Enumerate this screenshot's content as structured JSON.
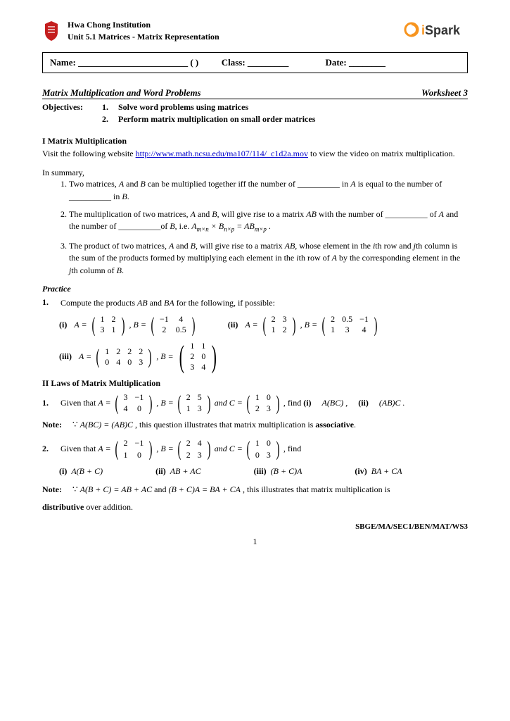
{
  "header": {
    "institution": "Hwa Chong Institution",
    "unit": "Unit 5.1 Matrices - Matrix Representation",
    "logo_right_text": "iSpark",
    "logo_left_color": "#c41e1e",
    "logo_right_color1": "#f7941e",
    "logo_right_color2": "#333333"
  },
  "nameline": {
    "name_label": "Name: ________________________ (      )",
    "class_label": "Class: _________",
    "date_label": "Date: ________"
  },
  "title": {
    "left": "Matrix Multiplication and Word Problems",
    "right": "Worksheet 3"
  },
  "objectives": {
    "label": "Objectives:",
    "item1_num": "1.",
    "item1": "Solve word problems using matrices",
    "item2_num": "2.",
    "item2": "Perform matrix multiplication on small order matrices"
  },
  "section1": {
    "head": "I     Matrix Multiplication",
    "intro_pre": "Visit the following website ",
    "link": "http://www.math.ncsu.edu/ma107/114/_c1d2a.mov",
    "intro_post": " to view the video on matrix multiplication.",
    "summary_label": "In summary,",
    "s1a": "Two matrices, ",
    "s1b": " can be multiplied together iff the number of __________ in ",
    "s1c": " is equal to the number of __________ in ",
    "s2a": "The multiplication of two matrices, ",
    "s2b": ", will give rise to a matrix ",
    "s2c": " with the number of __________ of ",
    "s2d": " and the number of __________of ",
    "s2e": ", i.e.  ",
    "formula": "A",
    "formula_sub1": "m×n",
    "formula_mid": " × B",
    "formula_sub2": "n×p",
    "formula_eq": " = AB",
    "formula_sub3": "m×p",
    "formula_end": " .",
    "s3a": "The product of two matrices, ",
    "s3b": ", will give rise to a matrix ",
    "s3c": ", whose element in the ",
    "s3d": "th row and ",
    "s3e": "th column is the sum of the products formed by multiplying each element in the ",
    "s3f": "th row of ",
    "s3g": " by the corresponding element in the ",
    "s3h": "th column of "
  },
  "practice": {
    "head": "Practice",
    "q1_num": "1.",
    "q1": "Compute the products ",
    "q1_mid": " and ",
    "q1_end": " for the following, if possible:",
    "i_label": "(i)",
    "ii_label": "(ii)",
    "iii_label": "(iii)",
    "iv_label": "(iv)",
    "A_eq": "A =",
    "B_eq": ", B =",
    "C_eq": " and  C =",
    "m1a": [
      [
        "1",
        "2"
      ],
      [
        "3",
        "1"
      ]
    ],
    "m1b": [
      [
        "−1",
        "4"
      ],
      [
        "2",
        "0.5"
      ]
    ],
    "m2a": [
      [
        "2",
        "3"
      ],
      [
        "1",
        "2"
      ]
    ],
    "m2b": [
      [
        "2",
        "0.5",
        "−1"
      ],
      [
        "1",
        "3",
        "4"
      ]
    ],
    "m3a": [
      [
        "1",
        "2",
        "2",
        "2"
      ],
      [
        "0",
        "4",
        "0",
        "3"
      ]
    ],
    "m3b": [
      [
        "1",
        "1"
      ],
      [
        "2",
        "0"
      ],
      [
        "3",
        "4"
      ]
    ]
  },
  "section2": {
    "head": "II    Laws of Matrix Multiplication",
    "q1_num": "1.",
    "q1_pre": "Given that  ",
    "q1_find": ", find ",
    "q1_i": "(i)",
    "q1_i_expr": "A(BC) ,",
    "q1_ii": "(ii)",
    "q1_ii_expr": "(AB)C .",
    "m1a": [
      [
        "3",
        "−1"
      ],
      [
        "4",
        "0"
      ]
    ],
    "m1b": [
      [
        "2",
        "5"
      ],
      [
        "1",
        "3"
      ]
    ],
    "m1c": [
      [
        "1",
        "0"
      ],
      [
        "2",
        "3"
      ]
    ],
    "note1_label": "Note:",
    "note1_sym": "∵",
    "note1_eq": "A(BC) = (AB)C",
    "note1_text": " , this question illustrates that matrix multiplication is ",
    "note1_bold": "associative",
    "q2_num": "2.",
    "q2_pre": "Given that  ",
    "q2_find": ", find",
    "m2a": [
      [
        "2",
        "−1"
      ],
      [
        "1",
        "0"
      ]
    ],
    "m2b": [
      [
        "2",
        "4"
      ],
      [
        "2",
        "3"
      ]
    ],
    "m2c": [
      [
        "1",
        "0"
      ],
      [
        "0",
        "3"
      ]
    ],
    "opt_i": "(i)",
    "opt_i_e": "A(B + C)",
    "opt_ii": "(ii)",
    "opt_ii_e": "AB + AC",
    "opt_iii": "(iii)",
    "opt_iii_e": "(B + C)A",
    "opt_iv": "(iv)",
    "opt_iv_e": "BA + CA",
    "note2_label": "Note:",
    "note2_sym": "∵",
    "note2_eq1": "A(B + C) = AB + AC",
    "note2_and": "  and  ",
    "note2_eq2": "(B + C)A = BA + CA",
    "note2_text": " , this illustrates that matrix multiplication is ",
    "note2_bold": "distributive",
    "note2_post": " over addition."
  },
  "footer": {
    "code": "SBGE/MA/SEC1/BEN/MAT/WS3",
    "page": "1"
  },
  "symbols": {
    "A": "A",
    "B": "B",
    "AB": "AB",
    "BA": "BA",
    "i": "i",
    "j": "j",
    "and": " and ",
    "period": "."
  }
}
